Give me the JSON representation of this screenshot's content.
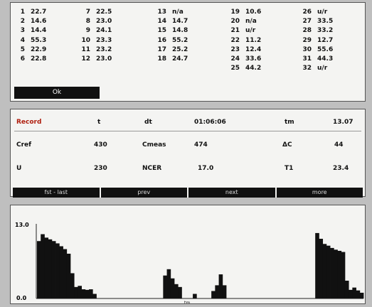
{
  "list": {
    "columns": [
      [
        [
          "1",
          "22.7"
        ],
        [
          "2",
          "14.6"
        ],
        [
          "3",
          "14.4"
        ],
        [
          "4",
          "55.3"
        ],
        [
          "5",
          "22.9"
        ],
        [
          "6",
          "22.8"
        ]
      ],
      [
        [
          "7",
          "22.5"
        ],
        [
          "8",
          "23.0"
        ],
        [
          "9",
          "24.1"
        ],
        [
          "10",
          "23.3"
        ],
        [
          "11",
          "23.2"
        ],
        [
          "12",
          "23.0"
        ]
      ],
      [
        [
          "13",
          "n/a"
        ],
        [
          "14",
          "14.7"
        ],
        [
          "15",
          "14.8"
        ],
        [
          "16",
          "55.2"
        ],
        [
          "17",
          "25.2"
        ],
        [
          "18",
          "24.7"
        ]
      ],
      [
        [
          "19",
          "10.6"
        ],
        [
          "20",
          "n/a"
        ],
        [
          "21",
          "u/r"
        ],
        [
          "22",
          "11.2"
        ],
        [
          "23",
          "12.4"
        ],
        [
          "24",
          "33.6"
        ],
        [
          "25",
          "44.2"
        ]
      ],
      [
        [
          "26",
          "u/r"
        ],
        [
          "27",
          "33.5"
        ],
        [
          "28",
          "33.2"
        ],
        [
          "29",
          "12.7"
        ],
        [
          "30",
          "55.6"
        ],
        [
          "31",
          "44.3"
        ],
        [
          "32",
          "u/r"
        ]
      ]
    ],
    "ok_label": "Ok"
  },
  "record": {
    "record_label": "Record",
    "record_value": "t",
    "dt_label": "dt",
    "time_value": "01:06:06",
    "tm_label": "tm",
    "tm_value": "13.07",
    "cref_label": "Cref",
    "cref_value": "430",
    "cmeas_label": "Cmeas",
    "cmeas_value": "474",
    "dc_label": "ΔC",
    "dc_value": "44",
    "u_label": "U",
    "u_value": "230",
    "ncer_label": "NCER",
    "ncer_value": "17.0",
    "t1_label": "T1",
    "t1_value": "23.4"
  },
  "nav": {
    "first_last": "fst - last",
    "prev": "prev",
    "next": "next",
    "more": "more"
  },
  "chart_data": {
    "type": "bar",
    "y_top_label": "13.0",
    "y_bottom_label": "0.0",
    "x_label": "tm",
    "ylim": [
      0,
      13
    ],
    "values": [
      10.0,
      11.2,
      10.6,
      10.3,
      10.0,
      9.6,
      9.1,
      8.6,
      7.8,
      4.4,
      2.0,
      2.2,
      1.6,
      1.5,
      1.6,
      0.8,
      0,
      0,
      0,
      0,
      0,
      0,
      0,
      0,
      0,
      0,
      0,
      0,
      0,
      0,
      0,
      0,
      0,
      0,
      4.0,
      5.1,
      3.5,
      2.5,
      2.0,
      0,
      0,
      0,
      0.8,
      0,
      0,
      0,
      0,
      1.3,
      2.3,
      4.2,
      2.3,
      0,
      0,
      0,
      0,
      0,
      0,
      0,
      0,
      0,
      0,
      0,
      0,
      0,
      0,
      0,
      0,
      0,
      0,
      0,
      0,
      0,
      0,
      0,
      0,
      11.4,
      10.4,
      9.5,
      9.2,
      8.8,
      8.5,
      8.3,
      8.1,
      3.1,
      1.5,
      1.9,
      1.4,
      1.0
    ]
  }
}
